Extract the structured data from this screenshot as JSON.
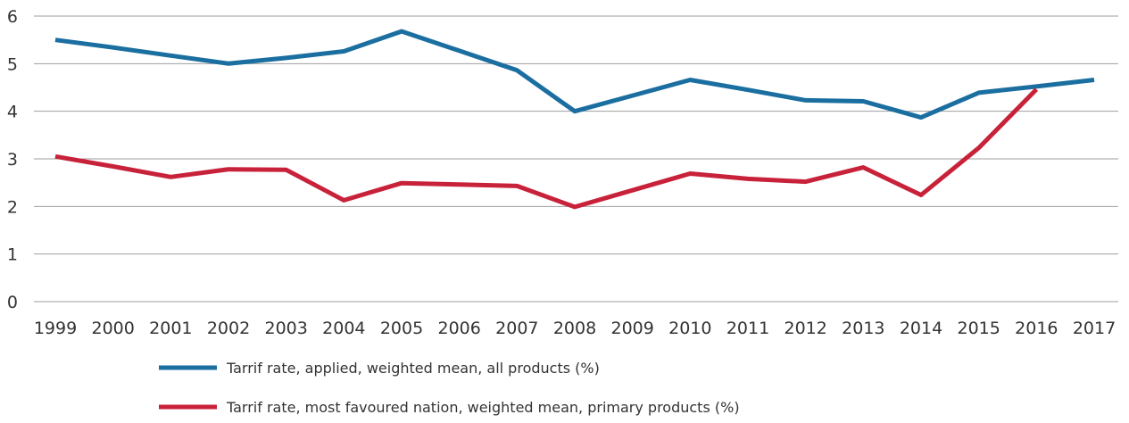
{
  "chart_data": {
    "type": "line",
    "title": "",
    "xlabel": "",
    "ylabel": "",
    "categories": [
      "1999",
      "2000",
      "2001",
      "2002",
      "2003",
      "2004",
      "2005",
      "2006",
      "2007",
      "2008",
      "2009",
      "2010",
      "2011",
      "2012",
      "2013",
      "2014",
      "2015",
      "2016",
      "2017"
    ],
    "ylim": [
      0,
      6
    ],
    "yticks": [
      "0",
      "1",
      "2",
      "3",
      "4",
      "5",
      "6"
    ],
    "grid": "horizontal",
    "legend_position": "bottom",
    "series": [
      {
        "name": "Tarrif rate, applied, weighted mean, all products (%)",
        "color": "#1a6ea0",
        "values": [
          5.5,
          5.34,
          5.17,
          5.0,
          5.12,
          5.26,
          5.68,
          5.27,
          4.86,
          4.0,
          4.33,
          4.66,
          4.45,
          4.23,
          4.21,
          3.87,
          4.39,
          4.52,
          4.66
        ]
      },
      {
        "name": "Tarrif rate, most favoured nation, weighted mean, primary products (%)",
        "color": "#c8223a",
        "values": [
          3.05,
          2.84,
          2.62,
          2.78,
          2.77,
          2.13,
          2.49,
          2.46,
          2.43,
          1.99,
          2.34,
          2.69,
          2.58,
          2.52,
          2.82,
          2.24,
          3.23,
          4.46,
          null
        ]
      }
    ]
  }
}
